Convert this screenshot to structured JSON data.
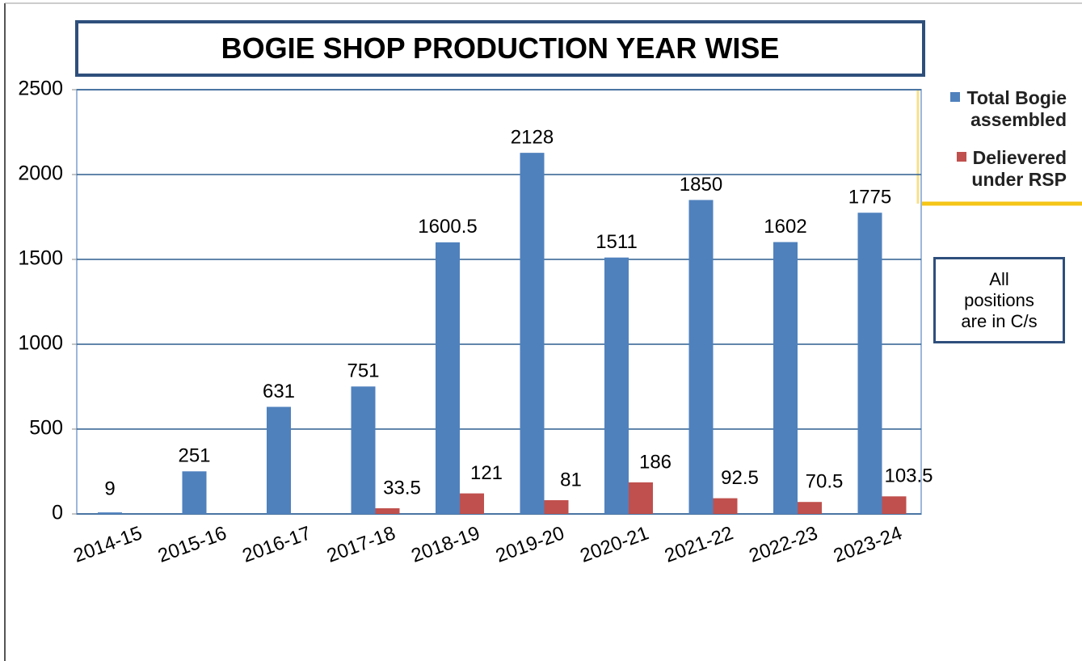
{
  "chart_data": {
    "type": "bar",
    "title": "BOGIE SHOP PRODUCTION YEAR WISE",
    "annotation": "All positions are in C/s",
    "categories": [
      "2014-15",
      "2015-16",
      "2016-17",
      "2017-18",
      "2018-19",
      "2019-20",
      "2020-21",
      "2021-22",
      "2022-23",
      "2023-24"
    ],
    "series": [
      {
        "name": "Total Bogie assembled",
        "color": "#4f81bd",
        "values": [
          9,
          251,
          631,
          751,
          1600.5,
          2128,
          1511,
          1850,
          1602,
          1775
        ]
      },
      {
        "name": "Delievered under RSP",
        "color": "#c0504d",
        "values": [
          null,
          null,
          null,
          33.5,
          121,
          81,
          186,
          92.5,
          70.5,
          103.5
        ]
      }
    ],
    "ylim": [
      0,
      2500
    ],
    "yticks": [
      0,
      500,
      1000,
      1500,
      2000,
      2500
    ],
    "grid": true,
    "legend": "right"
  }
}
